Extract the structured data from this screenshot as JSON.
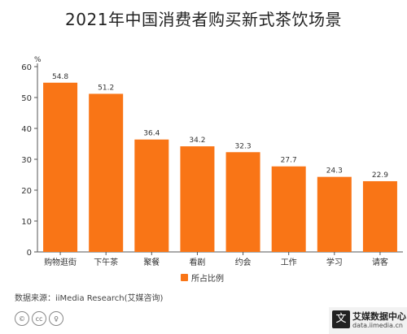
{
  "title": "2021年中国消费者购买新式茶饮场景",
  "chart_data": {
    "type": "bar",
    "unit_label": "%",
    "categories": [
      "购物逛街",
      "下午茶",
      "聚餐",
      "看剧",
      "约会",
      "工作",
      "学习",
      "请客"
    ],
    "series": [
      {
        "name": "所占比例",
        "values": [
          54.8,
          51.2,
          36.4,
          34.2,
          32.3,
          27.7,
          24.3,
          22.9
        ],
        "color": "#f97516"
      }
    ],
    "value_labels": [
      "54.8",
      "51.2",
      "36.4",
      "34.2",
      "32.3",
      "27.7",
      "24.3",
      "22.9"
    ],
    "y_ticks": [
      "0",
      "10",
      "20",
      "30",
      "40",
      "50",
      "60"
    ],
    "ylim": [
      0,
      60
    ],
    "grid": false,
    "legend_position": "bottom-center"
  },
  "source": "数据来源：iiMedia Research(艾媒咨询)",
  "license_icons": [
    "creative-commons-icon",
    "cc-by-icon",
    "cc-nc-icon"
  ],
  "brand": {
    "name": "艾媒数据中心",
    "url": "data.iimedia.cn",
    "mark": "文"
  },
  "colors": {
    "bar": "#f97516",
    "axis": "#555555"
  }
}
